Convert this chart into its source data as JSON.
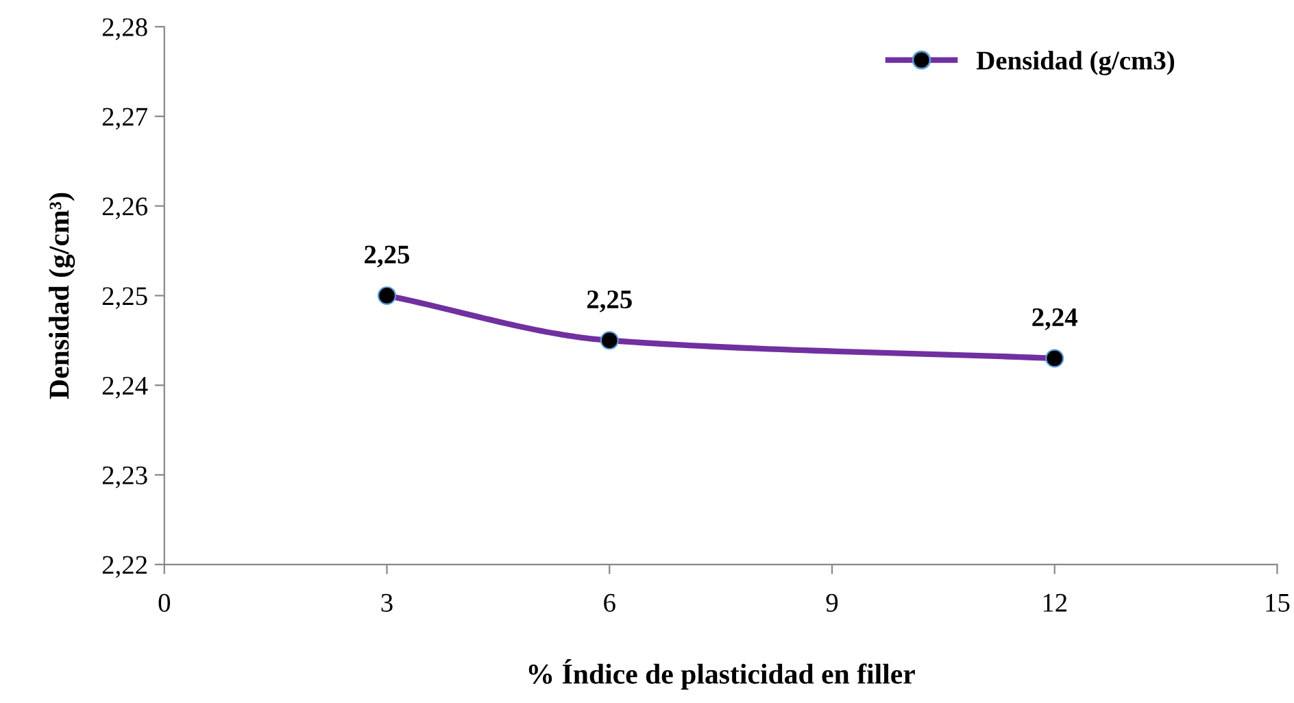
{
  "chart_data": {
    "type": "line",
    "xlabel": "% Índice de plasticidad en filler",
    "ylabel": "Densidad (g/cm³)",
    "x": [
      3,
      6,
      12
    ],
    "series": [
      {
        "name": "Densidad (g/cm3)",
        "color": "#7030a0",
        "values": [
          2.25,
          2.245,
          2.243
        ],
        "value_labels": [
          "2,25",
          "2,25",
          "2,24"
        ]
      }
    ],
    "xlim": [
      0,
      15
    ],
    "xticks": [
      0,
      3,
      6,
      9,
      12,
      15
    ],
    "ylim": [
      2.22,
      2.28
    ],
    "yticks": [
      {
        "value": 2.22,
        "label": "2,22"
      },
      {
        "value": 2.23,
        "label": "2,23"
      },
      {
        "value": 2.24,
        "label": "2,24"
      },
      {
        "value": 2.25,
        "label": "2,25"
      },
      {
        "value": 2.26,
        "label": "2,26"
      },
      {
        "value": 2.27,
        "label": "2,27"
      },
      {
        "value": 2.28,
        "label": "2,28"
      }
    ],
    "grid": false,
    "legend": "top right",
    "marker": "circle",
    "line_style": "solid"
  }
}
